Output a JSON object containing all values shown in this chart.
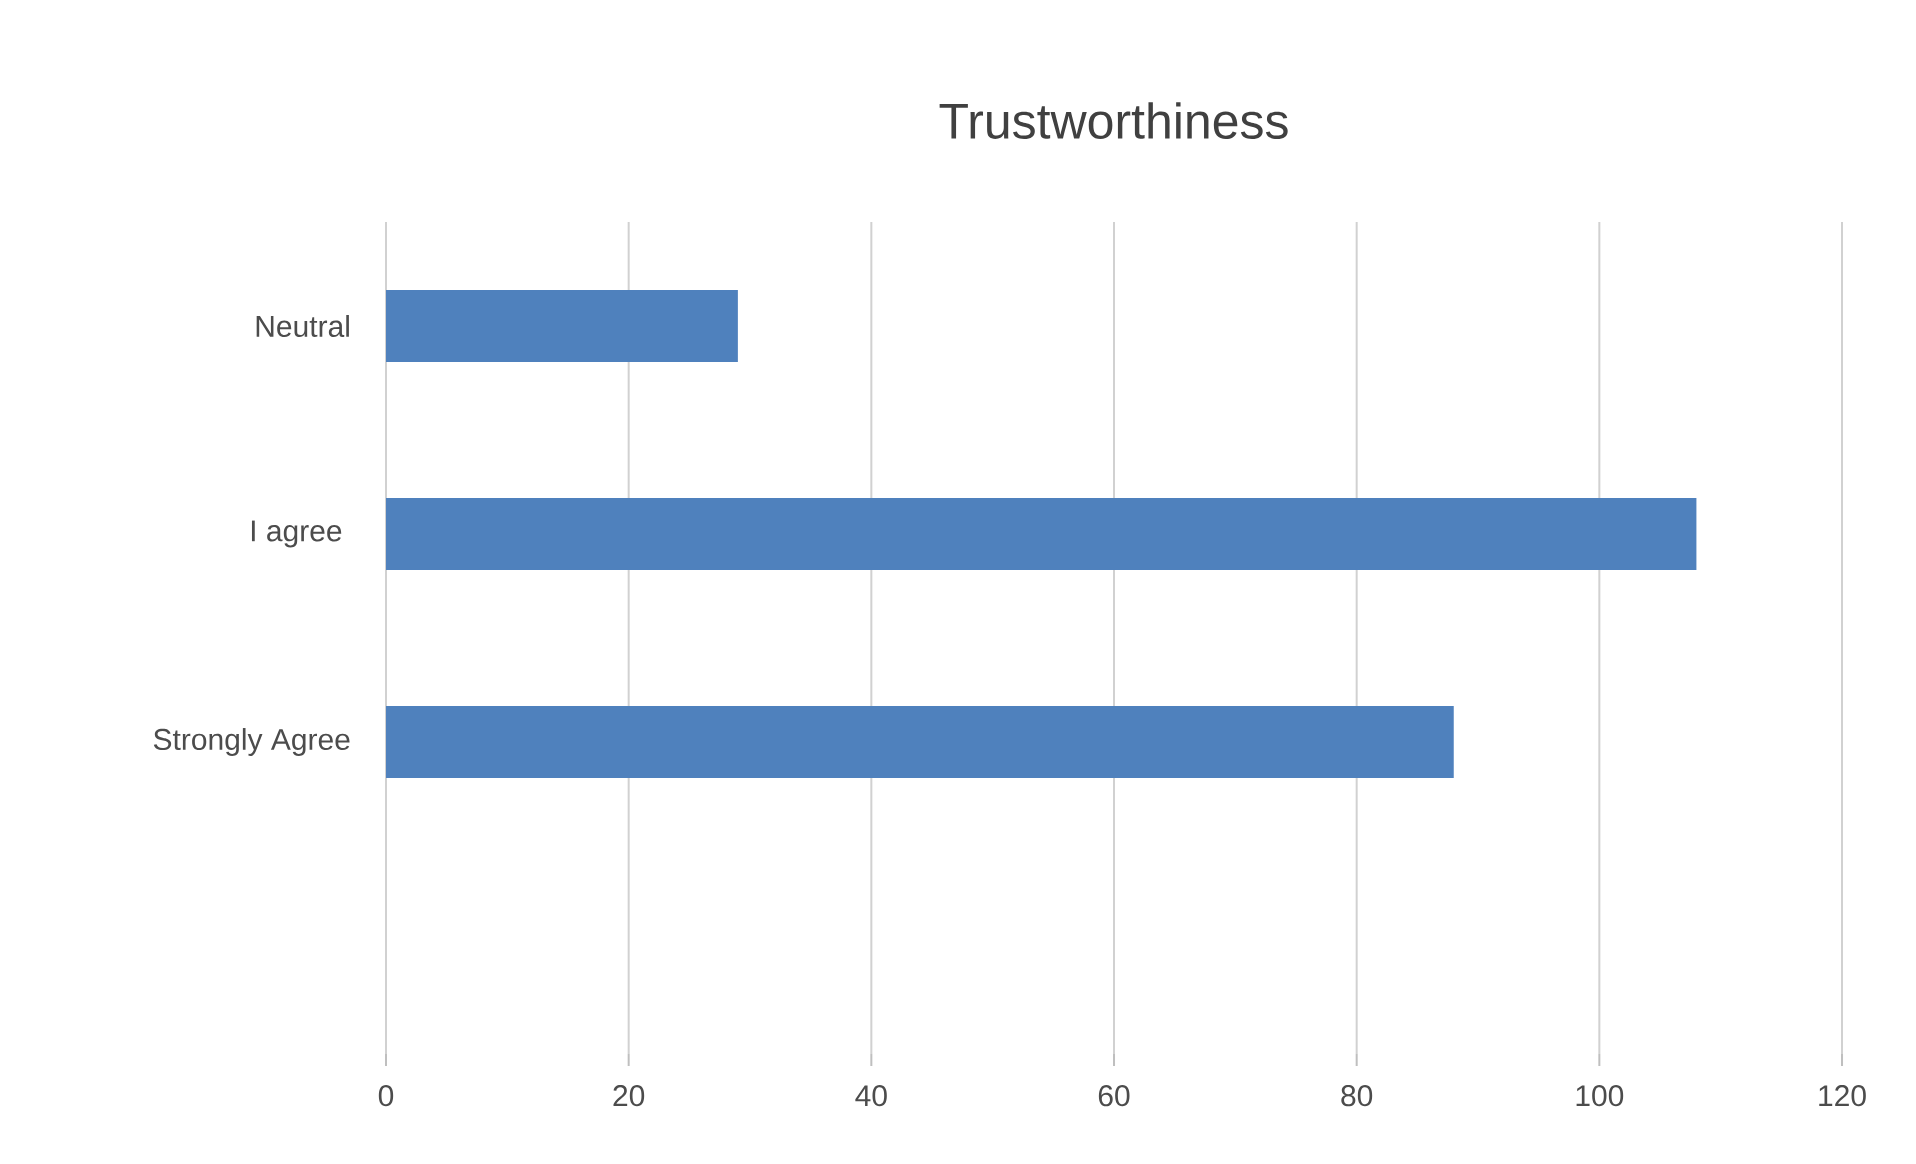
{
  "chart_data": {
    "type": "bar",
    "orientation": "horizontal",
    "title": "Trustworthiness",
    "categories": [
      "Neutral",
      "I agree ",
      "Strongly Agree",
      null
    ],
    "values": [
      29,
      108,
      88,
      null
    ],
    "color": "#4f81bd",
    "xlim": [
      0,
      120
    ],
    "xticks": [
      0,
      20,
      40,
      60,
      80,
      100,
      120
    ],
    "grid": "x"
  }
}
